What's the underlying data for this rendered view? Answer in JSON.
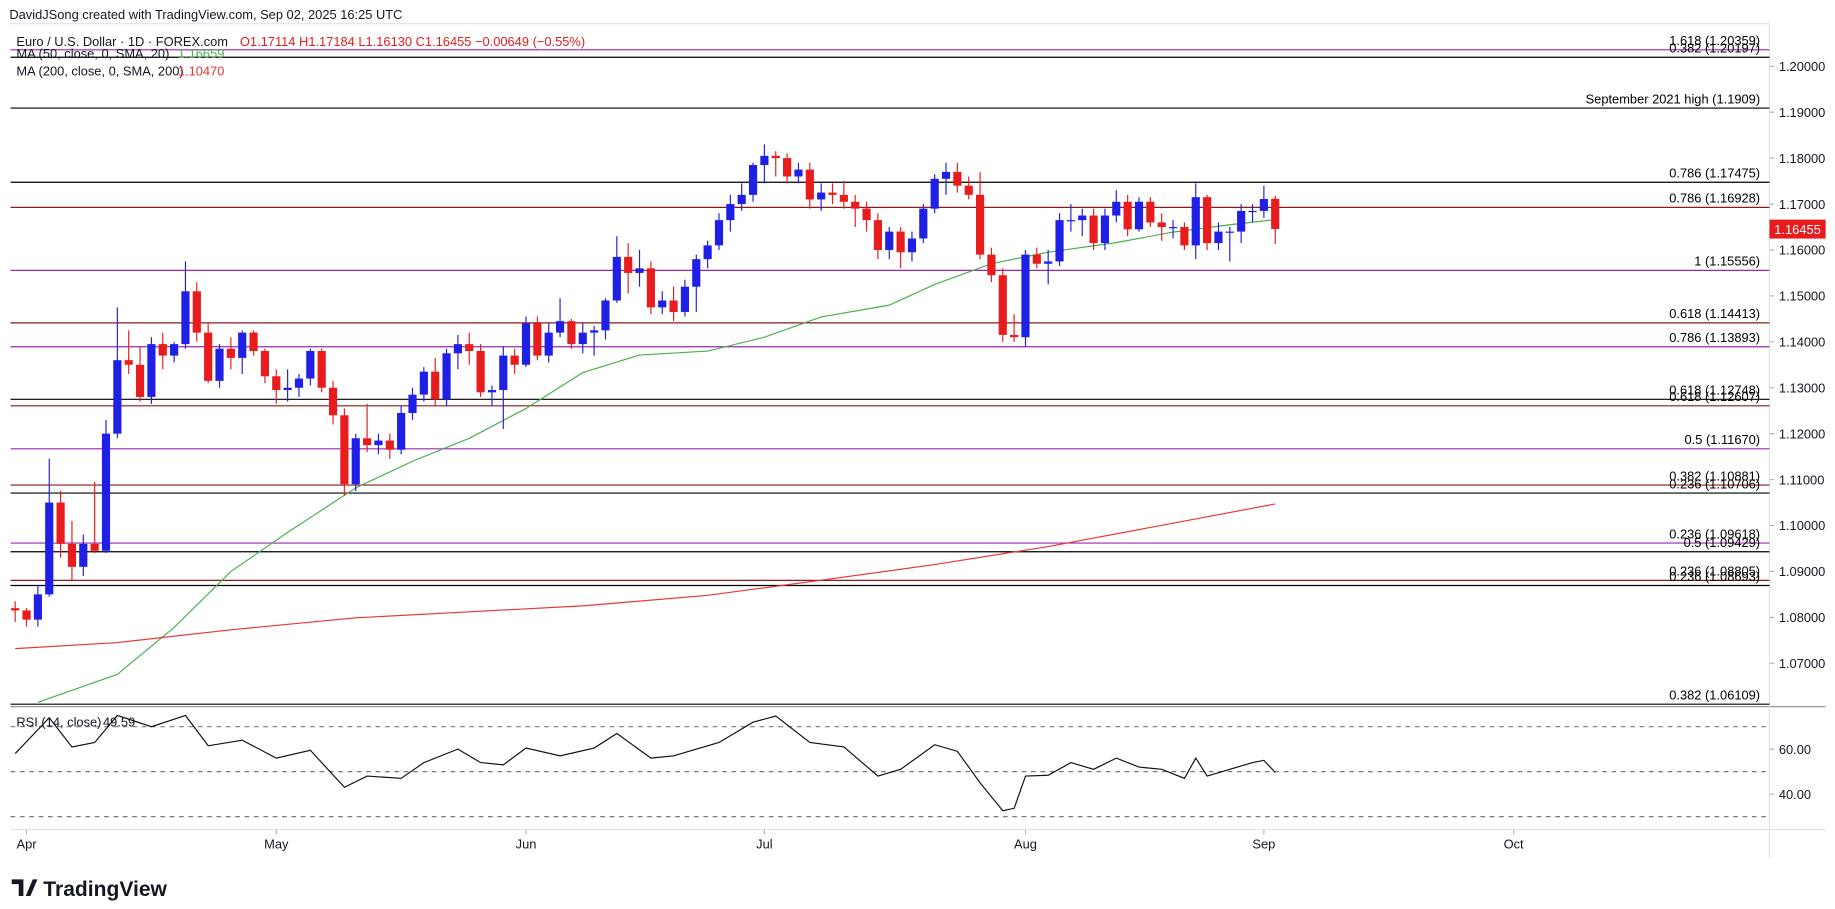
{
  "header": {
    "credit": "DavidJSong created with TradingView.com, Sep 02, 2025 16:25 UTC",
    "symbol": "Euro / U.S. Dollar · 1D · FOREX.com",
    "ohlc": "O1.17114 H1.17184 L1.16130 C1.16455 −0.00649 (−0.55%)",
    "logo": "TradingView"
  },
  "chart_data": [
    {
      "type": "candlestick",
      "up_color": "#1f1fe6",
      "down_color": "#e81c1c",
      "open": [
        1.082,
        1.0815,
        1.0795,
        1.085,
        1.105,
        1.096,
        1.091,
        1.096,
        1.0945,
        1.12,
        1.136,
        1.135,
        1.128,
        1.1395,
        1.137,
        1.1395,
        1.151,
        1.142,
        1.1315,
        1.1385,
        1.1365,
        1.142,
        1.138,
        1.1325,
        1.1295,
        1.13,
        1.132,
        1.138,
        1.13,
        1.124,
        1.109,
        1.119,
        1.1175,
        1.1185,
        1.1165,
        1.1245,
        1.1285,
        1.1335,
        1.1275,
        1.1375,
        1.1395,
        1.138,
        1.129,
        1.1295,
        1.137,
        1.135,
        1.144,
        1.137,
        1.142,
        1.1445,
        1.1395,
        1.142,
        1.1425,
        1.149,
        1.1585,
        1.155,
        1.156,
        1.1475,
        1.149,
        1.1465,
        1.152,
        1.158,
        1.161,
        1.1665,
        1.17,
        1.172,
        1.1785,
        1.1805,
        1.18,
        1.176,
        1.1775,
        1.171,
        1.1725,
        1.172,
        1.1705,
        1.169,
        1.1665,
        1.16,
        1.164,
        1.1595,
        1.1625,
        1.169,
        1.1755,
        1.177,
        1.174,
        1.172,
        1.159,
        1.1545,
        1.1415,
        1.141,
        1.159,
        1.157,
        1.1575,
        1.1665,
        1.1665,
        1.1675,
        1.1615,
        1.1675,
        1.1705,
        1.1645,
        1.1705,
        1.166,
        1.165,
        1.165,
        1.161,
        1.1715,
        1.1615,
        1.164,
        1.164,
        1.1685,
        1.1685,
        1.17114
      ],
      "high": [
        1.0835,
        1.082,
        1.087,
        1.1145,
        1.1075,
        1.101,
        1.098,
        1.1095,
        1.123,
        1.1475,
        1.1425,
        1.139,
        1.141,
        1.142,
        1.14,
        1.1575,
        1.153,
        1.144,
        1.1395,
        1.141,
        1.1425,
        1.1425,
        1.1385,
        1.134,
        1.134,
        1.133,
        1.1385,
        1.1385,
        1.1315,
        1.1255,
        1.12,
        1.1265,
        1.12,
        1.12,
        1.126,
        1.13,
        1.1345,
        1.1365,
        1.1385,
        1.1415,
        1.142,
        1.1395,
        1.1305,
        1.139,
        1.1385,
        1.1455,
        1.1455,
        1.144,
        1.1495,
        1.145,
        1.144,
        1.1435,
        1.1495,
        1.163,
        1.1615,
        1.16,
        1.1575,
        1.151,
        1.152,
        1.1535,
        1.159,
        1.162,
        1.168,
        1.172,
        1.1745,
        1.179,
        1.183,
        1.1815,
        1.181,
        1.179,
        1.179,
        1.1745,
        1.1745,
        1.175,
        1.172,
        1.1705,
        1.168,
        1.165,
        1.165,
        1.164,
        1.17,
        1.1765,
        1.179,
        1.179,
        1.176,
        1.177,
        1.1605,
        1.156,
        1.146,
        1.16,
        1.1605,
        1.16,
        1.168,
        1.17,
        1.169,
        1.169,
        1.169,
        1.173,
        1.172,
        1.1715,
        1.1715,
        1.168,
        1.1665,
        1.166,
        1.1745,
        1.172,
        1.166,
        1.165,
        1.17,
        1.17,
        1.174,
        1.17184
      ],
      "low": [
        1.079,
        1.078,
        1.078,
        1.0845,
        1.093,
        1.088,
        1.089,
        1.094,
        1.094,
        1.119,
        1.133,
        1.127,
        1.1265,
        1.134,
        1.1355,
        1.1385,
        1.14,
        1.131,
        1.13,
        1.134,
        1.133,
        1.137,
        1.131,
        1.1265,
        1.127,
        1.128,
        1.1305,
        1.129,
        1.122,
        1.1065,
        1.1075,
        1.116,
        1.1155,
        1.1145,
        1.1155,
        1.123,
        1.127,
        1.126,
        1.126,
        1.134,
        1.135,
        1.128,
        1.126,
        1.121,
        1.133,
        1.1345,
        1.136,
        1.1355,
        1.141,
        1.1385,
        1.1375,
        1.137,
        1.1405,
        1.1485,
        1.1505,
        1.152,
        1.146,
        1.146,
        1.1445,
        1.1455,
        1.1465,
        1.156,
        1.16,
        1.164,
        1.1685,
        1.1705,
        1.1745,
        1.176,
        1.1745,
        1.1745,
        1.169,
        1.1685,
        1.17,
        1.169,
        1.165,
        1.164,
        1.158,
        1.158,
        1.156,
        1.1575,
        1.1615,
        1.168,
        1.172,
        1.1725,
        1.171,
        1.158,
        1.153,
        1.14,
        1.14,
        1.139,
        1.156,
        1.1525,
        1.1565,
        1.164,
        1.163,
        1.16,
        1.16,
        1.166,
        1.163,
        1.164,
        1.165,
        1.162,
        1.1625,
        1.16,
        1.158,
        1.16,
        1.16,
        1.1575,
        1.1615,
        1.166,
        1.167,
        1.1613
      ],
      "close": [
        1.0815,
        1.0795,
        1.085,
        1.105,
        1.096,
        1.091,
        1.096,
        1.0945,
        1.12,
        1.136,
        1.135,
        1.128,
        1.1395,
        1.137,
        1.1395,
        1.151,
        1.142,
        1.1315,
        1.1385,
        1.1365,
        1.142,
        1.138,
        1.1325,
        1.1295,
        1.13,
        1.132,
        1.138,
        1.13,
        1.124,
        1.109,
        1.119,
        1.1175,
        1.1185,
        1.1165,
        1.1245,
        1.1285,
        1.1335,
        1.1275,
        1.1375,
        1.1395,
        1.138,
        1.129,
        1.1295,
        1.137,
        1.135,
        1.144,
        1.137,
        1.142,
        1.1445,
        1.1395,
        1.142,
        1.1425,
        1.149,
        1.1585,
        1.155,
        1.156,
        1.1475,
        1.149,
        1.1465,
        1.152,
        1.158,
        1.161,
        1.1665,
        1.17,
        1.172,
        1.1785,
        1.1805,
        1.18,
        1.176,
        1.1775,
        1.171,
        1.1725,
        1.172,
        1.1705,
        1.169,
        1.1665,
        1.16,
        1.164,
        1.1595,
        1.1625,
        1.169,
        1.1755,
        1.177,
        1.174,
        1.172,
        1.159,
        1.1545,
        1.1415,
        1.141,
        1.159,
        1.157,
        1.1575,
        1.1665,
        1.1665,
        1.1675,
        1.1615,
        1.1675,
        1.1705,
        1.1645,
        1.1705,
        1.166,
        1.165,
        1.165,
        1.161,
        1.1715,
        1.1615,
        1.164,
        1.164,
        1.1685,
        1.1685,
        1.1711,
        1.16455
      ],
      "last_price_label": "1.16455",
      "series": [
        {
          "name": "MA (50, close, 0, SMA, 20)",
          "value_label": "1.16659",
          "color": "#4caf50",
          "x": [
            2,
            9,
            14,
            19,
            24,
            30,
            35,
            40,
            45,
            50,
            55,
            61,
            66,
            71,
            77,
            81,
            86,
            91,
            97,
            102,
            107,
            111
          ],
          "values": [
            1.0615,
            1.0676,
            1.0778,
            1.09,
            1.0985,
            1.1082,
            1.114,
            1.119,
            1.1255,
            1.1333,
            1.1371,
            1.138,
            1.141,
            1.1454,
            1.148,
            1.1525,
            1.157,
            1.1595,
            1.1616,
            1.1639,
            1.1655,
            1.16659
          ]
        },
        {
          "name": "MA (200, close, 0, SMA, 200)",
          "value_label": "1.10470",
          "color": "#e53935",
          "x": [
            0,
            9,
            19,
            30,
            40,
            50,
            61,
            71,
            81,
            91,
            102,
            111
          ],
          "values": [
            1.0732,
            1.0745,
            1.0773,
            1.0799,
            1.0812,
            1.0825,
            1.0848,
            1.0881,
            1.0915,
            1.0954,
            1.1005,
            1.1047
          ]
        }
      ],
      "levels": [
        {
          "value": 1.20359,
          "label": "1.618 (1.20359)",
          "color": "#9c27b0"
        },
        {
          "value": 1.20197,
          "label": "0.382 (1.20197)",
          "color": "#000000"
        },
        {
          "value": 1.1909,
          "label": "September 2021 high (1.1909)",
          "color": "#000000"
        },
        {
          "value": 1.17475,
          "label": "0.786 (1.17475)",
          "color": "#000000"
        },
        {
          "value": 1.16928,
          "label": "0.786 (1.16928)",
          "color": "#8b1a1a"
        },
        {
          "value": 1.15556,
          "label": "1 (1.15556)",
          "color": "#9c27b0"
        },
        {
          "value": 1.14413,
          "label": "0.618 (1.14413)",
          "color": "#8b1a1a"
        },
        {
          "value": 1.13893,
          "label": "0.786 (1.13893)",
          "color": "#9c27b0"
        },
        {
          "value": 1.12748,
          "label": "0.618 (1.12748)",
          "color": "#000000"
        },
        {
          "value": 1.12607,
          "label": "0.618 (1.12607)",
          "color": "#8b1a1a"
        },
        {
          "value": 1.1167,
          "label": "0.5 (1.11670)",
          "color": "#9c27b0"
        },
        {
          "value": 1.10881,
          "label": "0.382 (1.10881)",
          "color": "#8b1a1a"
        },
        {
          "value": 1.10706,
          "label": "0.236 (1.10706)",
          "color": "#000000"
        },
        {
          "value": 1.09618,
          "label": "0.236 (1.09618)",
          "color": "#9c27b0"
        },
        {
          "value": 1.09429,
          "label": "0.5 (1.09429)",
          "color": "#000000"
        },
        {
          "value": 1.08805,
          "label": "0.236 (1.08805)",
          "color": "#8b1a1a"
        },
        {
          "value": 1.08693,
          "label": "0.236 (1.08693)",
          "color": "#000000"
        },
        {
          "value": 1.06109,
          "label": "0.382 (1.06109)",
          "color": "#000000"
        }
      ],
      "xlim": [
        -0.41,
        154.54
      ],
      "xticks": [
        {
          "value": 1,
          "label": "Apr"
        },
        {
          "value": 23,
          "label": "May"
        },
        {
          "value": 45,
          "label": "Jun"
        },
        {
          "value": 66,
          "label": "Jul"
        },
        {
          "value": 89,
          "label": "Aug"
        },
        {
          "value": 110,
          "label": "Sep"
        },
        {
          "value": 132,
          "label": "Oct"
        }
      ],
      "ylim": [
        1.06082,
        1.20928
      ],
      "yticks": [
        {
          "value": 1.07,
          "label": "1.07000"
        },
        {
          "value": 1.08,
          "label": "1.08000"
        },
        {
          "value": 1.09,
          "label": "1.09000"
        },
        {
          "value": 1.1,
          "label": "1.10000"
        },
        {
          "value": 1.11,
          "label": "1.11000"
        },
        {
          "value": 1.12,
          "label": "1.12000"
        },
        {
          "value": 1.13,
          "label": "1.13000"
        },
        {
          "value": 1.14,
          "label": "1.14000"
        },
        {
          "value": 1.15,
          "label": "1.15000"
        },
        {
          "value": 1.16,
          "label": "1.16000"
        },
        {
          "value": 1.17,
          "label": "1.17000"
        },
        {
          "value": 1.18,
          "label": "1.18000"
        },
        {
          "value": 1.19,
          "label": "1.19000"
        },
        {
          "value": 1.2,
          "label": "1.20000"
        }
      ]
    },
    {
      "type": "line",
      "title": "RSI (14, close)",
      "value_label": "49.59",
      "color": "#111111",
      "x": [
        0,
        3,
        5,
        7,
        9,
        12,
        15,
        17,
        20,
        23,
        26,
        29,
        31,
        34,
        36,
        39,
        41,
        43,
        45,
        48,
        51,
        53,
        56,
        58,
        62,
        65,
        67,
        70,
        73,
        76,
        78,
        81,
        83,
        85,
        87,
        88,
        89,
        91,
        93,
        95,
        97,
        99,
        101,
        103,
        104,
        105,
        107,
        109,
        110,
        111
      ],
      "values": [
        58,
        74,
        61,
        63,
        75,
        70,
        75,
        61.5,
        64,
        56,
        59.5,
        43,
        48,
        47,
        54,
        60,
        54,
        53,
        60.5,
        57,
        60.5,
        67,
        56,
        57,
        63,
        72,
        74.7,
        63,
        61,
        48,
        51,
        62,
        59,
        45,
        32.6,
        33.7,
        48,
        48.4,
        54,
        51,
        56,
        52,
        51,
        47,
        56,
        48,
        51,
        54,
        55,
        49.59
      ],
      "levels": [
        70,
        50,
        30
      ],
      "ylim": [
        24.7,
        78.4
      ],
      "yticks": [
        {
          "value": 40,
          "label": "40.00"
        },
        {
          "value": 60,
          "label": "60.00"
        }
      ]
    }
  ]
}
